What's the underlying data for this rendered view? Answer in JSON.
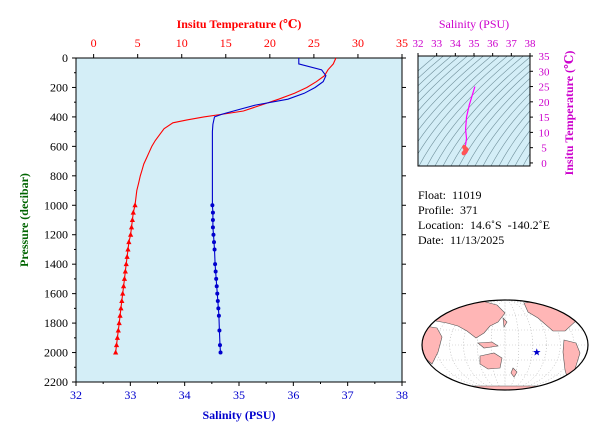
{
  "chart_data": [
    {
      "type": "line",
      "title": "",
      "ylabel": "Pressure (decibar)",
      "y_axis": {
        "range": [
          0,
          2200
        ],
        "ticks": [
          0,
          200,
          400,
          600,
          800,
          1000,
          1200,
          1400,
          1600,
          1800,
          2000,
          2200
        ],
        "inverted": true
      },
      "x_axis_top": {
        "label": "Insitu Temperature (℃)",
        "range": [
          -2,
          35
        ],
        "ticks": [
          0,
          5,
          10,
          15,
          20,
          25,
          30,
          35
        ],
        "color": "#ff0000"
      },
      "x_axis_bottom": {
        "label": "Salinity (PSU)",
        "range": [
          32,
          38
        ],
        "ticks": [
          32,
          33,
          34,
          35,
          36,
          37,
          38
        ],
        "color": "#0000cd"
      },
      "background": "#d4eef7",
      "grid": false,
      "series": [
        {
          "axis": "top",
          "color": "#ff0000",
          "x": [
            27.5,
            27.2,
            26.6,
            26.2,
            25.3,
            24.2,
            22.8,
            21.0,
            19.0,
            17.0,
            14.8,
            12.5,
            10.6,
            9.0,
            8.0,
            7.5,
            7.0,
            6.6,
            6.3,
            6.0,
            5.7,
            5.5,
            5.3,
            5.1,
            4.9,
            4.7,
            4.5,
            4.4,
            4.3,
            4.2,
            4.0,
            3.9,
            3.8,
            3.7,
            3.6,
            3.5,
            3.4,
            3.3,
            3.2,
            3.1,
            3.0,
            2.9,
            2.8,
            2.7,
            2.6,
            2.5
          ],
          "y": [
            0,
            40,
            80,
            120,
            160,
            200,
            240,
            280,
            320,
            360,
            380,
            400,
            420,
            440,
            480,
            520,
            560,
            600,
            640,
            680,
            720,
            760,
            800,
            850,
            900,
            1000,
            1050,
            1100,
            1150,
            1200,
            1250,
            1300,
            1350,
            1400,
            1450,
            1500,
            1550,
            1600,
            1650,
            1700,
            1750,
            1800,
            1850,
            1900,
            1950,
            2000
          ],
          "markers_from": 1000
        },
        {
          "axis": "bottom",
          "color": "#0000cd",
          "x": [
            36.1,
            36.1,
            36.52,
            36.6,
            36.55,
            36.4,
            36.2,
            35.9,
            35.3,
            34.9,
            34.7,
            34.55,
            34.52,
            34.51,
            34.51,
            34.51,
            34.51,
            34.51,
            34.51,
            34.52,
            34.52,
            34.52,
            34.53,
            34.54,
            34.55,
            34.56,
            34.57,
            34.58,
            34.59,
            34.6,
            34.61,
            34.62,
            34.63,
            34.64,
            34.65,
            34.66
          ],
          "y": [
            0,
            40,
            80,
            120,
            160,
            200,
            240,
            280,
            320,
            360,
            380,
            400,
            450,
            500,
            600,
            700,
            800,
            900,
            1000,
            1050,
            1100,
            1150,
            1200,
            1250,
            1300,
            1400,
            1450,
            1500,
            1550,
            1600,
            1650,
            1700,
            1750,
            1850,
            1950,
            2000
          ],
          "markers_from": 1000
        }
      ]
    },
    {
      "type": "scatter",
      "title": "",
      "x_axis": {
        "label": "Salinity (PSU)",
        "range": [
          32,
          38
        ],
        "ticks": [
          32,
          33,
          34,
          35,
          36,
          37,
          38
        ],
        "color": "#cc00cc"
      },
      "y_axis": {
        "label": "Insitu Temperature (℃)",
        "range": [
          -1,
          35
        ],
        "ticks": [
          0,
          5,
          10,
          15,
          20,
          25,
          30,
          35
        ],
        "color": "#cc00cc"
      },
      "background": "#d4eef7",
      "contours": true,
      "series": [
        {
          "color": "#ff00ff",
          "x": [
            35.05,
            34.9,
            34.75,
            34.6,
            34.55,
            34.6,
            34.55,
            34.52,
            34.5,
            34.6
          ],
          "y": [
            25,
            22,
            19,
            15,
            11,
            8,
            6,
            5,
            4,
            3
          ]
        },
        {
          "color": "#ff5555",
          "x": [
            34.45,
            34.5,
            34.55,
            34.6,
            34.52,
            34.48,
            34.55
          ],
          "y": [
            3.2,
            3.6,
            4.0,
            4.4,
            4.8,
            5.2,
            3.8
          ]
        }
      ]
    }
  ],
  "info": {
    "float": "Float:  11019",
    "profile": "Profile:  371",
    "location": "Location:  14.6˚S  -140.2˚E",
    "date": "Date:  11/13/2025"
  },
  "map": {
    "land_color": "#ffb6b6",
    "ocean_color": "#ffffff",
    "marker_color": "#0000cd",
    "marker_lat": -14.6,
    "marker_lon": -140.2
  }
}
